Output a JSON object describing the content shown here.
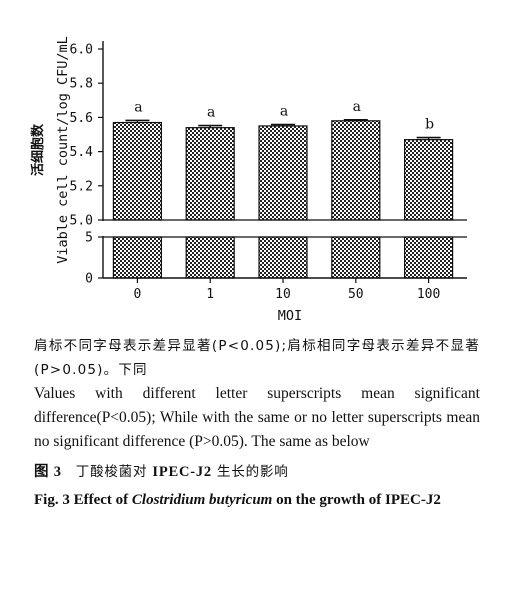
{
  "chart_data": {
    "type": "bar",
    "categories": [
      "0",
      "1",
      "10",
      "50",
      "100"
    ],
    "values": [
      5.57,
      5.54,
      5.55,
      5.58,
      5.47
    ],
    "errors": [
      0.012,
      0.012,
      0.008,
      0.006,
      0.012
    ],
    "significance": [
      "a",
      "a",
      "a",
      "a",
      "b"
    ],
    "xlabel": "MOI",
    "ylabel_zh": "活细胞数",
    "ylabel": "Viable cell count/log CFU/mL",
    "ylim": [
      5.0,
      6.0
    ],
    "yticks": [
      "5.0",
      "5.2",
      "5.4",
      "5.6",
      "5.8",
      "6.0"
    ],
    "lower_ylim": [
      0,
      5
    ],
    "lower_yticks": [
      "0",
      "5"
    ],
    "axis_break": true,
    "grid": false,
    "bar_pattern": "checkerboard"
  },
  "caption": {
    "note_zh": "肩标不同字母表示差异显著(P<0.05);肩标相同字母表示差异不显著(P>0.05)。下同",
    "note_en": "Values with different letter superscripts mean significant difference(P<0.05); While with the same or no letter superscripts mean no significant difference (P>0.05). The same as below",
    "figure_number_zh": "图 3",
    "figure_title_zh_pre": "丁酸梭菌对",
    "figure_title_zh_strain": "IPEC-J2",
    "figure_title_zh_post": "生长的影响",
    "figure_title_en_pre": "Fig. 3   Effect of",
    "figure_title_en_species": "Clostridium butyricum",
    "figure_title_en_post": "on the growth of IPEC-J2"
  }
}
